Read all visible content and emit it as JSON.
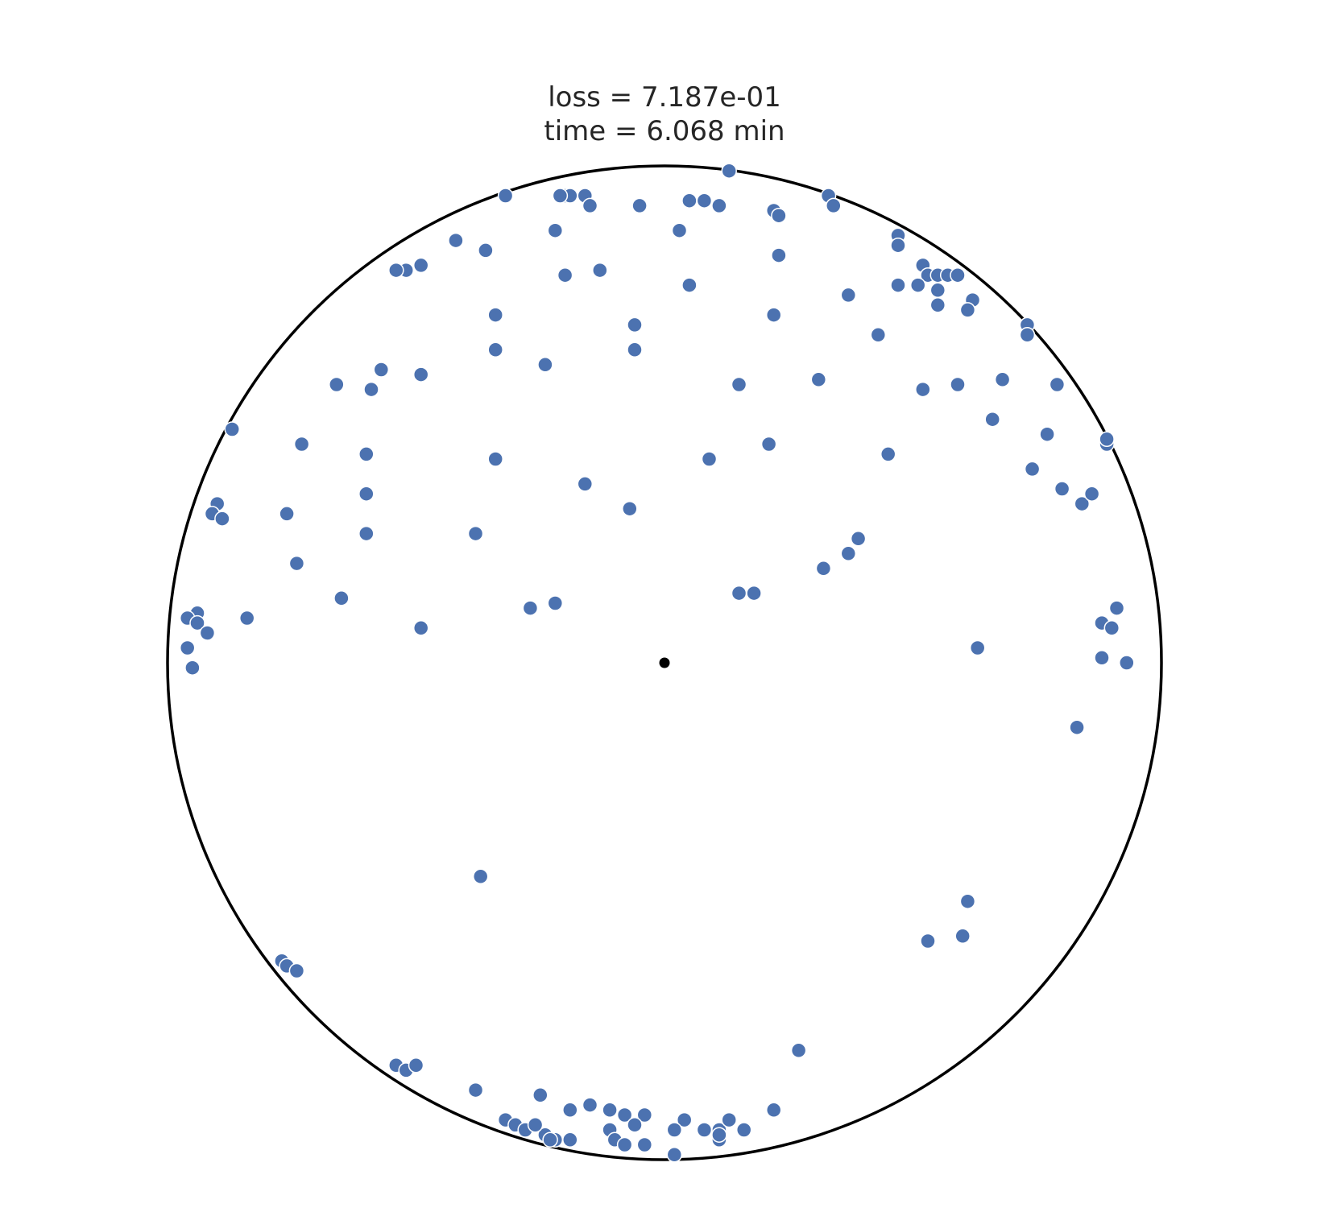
{
  "chart_data": {
    "type": "scatter",
    "title": [
      "loss = 7.187e-01",
      "time = 6.068 min"
    ],
    "xlabel": "",
    "ylabel": "",
    "xlim": [
      -1,
      1
    ],
    "ylim": [
      -1,
      1
    ],
    "axes_visible": false,
    "grid": false,
    "boundary": "unit-circle",
    "origin_marker": [
      0,
      0
    ],
    "point_color": "#4c72b0",
    "edge_color": "#ffffff",
    "boundary_color": "#000000",
    "points": [
      [
        -0.32,
        0.94
      ],
      [
        -0.2,
        0.94
      ],
      [
        -0.19,
        0.94
      ],
      [
        -0.21,
        0.94
      ],
      [
        -0.16,
        0.94
      ],
      [
        -0.15,
        0.92
      ],
      [
        -0.05,
        0.92
      ],
      [
        0.05,
        0.93
      ],
      [
        0.08,
        0.93
      ],
      [
        0.11,
        0.92
      ],
      [
        0.13,
        0.99
      ],
      [
        0.22,
        0.91
      ],
      [
        0.23,
        0.9
      ],
      [
        0.33,
        0.94
      ],
      [
        0.34,
        0.92
      ],
      [
        -0.22,
        0.87
      ],
      [
        0.03,
        0.87
      ],
      [
        -0.42,
        0.85
      ],
      [
        -0.36,
        0.83
      ],
      [
        -0.52,
        0.79
      ],
      [
        -0.54,
        0.79
      ],
      [
        -0.49,
        0.8
      ],
      [
        -0.2,
        0.78
      ],
      [
        -0.13,
        0.79
      ],
      [
        0.05,
        0.76
      ],
      [
        0.23,
        0.82
      ],
      [
        0.47,
        0.86
      ],
      [
        0.47,
        0.84
      ],
      [
        0.52,
        0.8
      ],
      [
        0.53,
        0.78
      ],
      [
        0.55,
        0.78
      ],
      [
        0.57,
        0.78
      ],
      [
        0.59,
        0.78
      ],
      [
        0.47,
        0.76
      ],
      [
        0.51,
        0.76
      ],
      [
        0.55,
        0.75
      ],
      [
        0.37,
        0.74
      ],
      [
        0.55,
        0.72
      ],
      [
        0.62,
        0.73
      ],
      [
        0.61,
        0.71
      ],
      [
        -0.34,
        0.7
      ],
      [
        -0.06,
        0.68
      ],
      [
        0.22,
        0.7
      ],
      [
        0.73,
        0.68
      ],
      [
        0.73,
        0.66
      ],
      [
        0.43,
        0.66
      ],
      [
        -0.34,
        0.63
      ],
      [
        -0.06,
        0.63
      ],
      [
        -0.24,
        0.6
      ],
      [
        -0.59,
        0.55
      ],
      [
        -0.57,
        0.59
      ],
      [
        -0.49,
        0.58
      ],
      [
        -0.66,
        0.56
      ],
      [
        0.15,
        0.56
      ],
      [
        0.31,
        0.57
      ],
      [
        0.52,
        0.55
      ],
      [
        0.59,
        0.56
      ],
      [
        0.68,
        0.57
      ],
      [
        0.79,
        0.56
      ],
      [
        0.66,
        0.49
      ],
      [
        0.77,
        0.46
      ],
      [
        -0.87,
        0.47
      ],
      [
        -0.73,
        0.44
      ],
      [
        -0.6,
        0.42
      ],
      [
        -0.34,
        0.41
      ],
      [
        0.09,
        0.41
      ],
      [
        0.21,
        0.44
      ],
      [
        0.45,
        0.42
      ],
      [
        0.89,
        0.44
      ],
      [
        0.89,
        0.45
      ],
      [
        0.74,
        0.39
      ],
      [
        0.8,
        0.35
      ],
      [
        0.84,
        0.32
      ],
      [
        0.86,
        0.34
      ],
      [
        -0.6,
        0.34
      ],
      [
        -0.16,
        0.36
      ],
      [
        -0.07,
        0.31
      ],
      [
        -0.9,
        0.32
      ],
      [
        -0.91,
        0.3
      ],
      [
        -0.89,
        0.29
      ],
      [
        -0.76,
        0.3
      ],
      [
        -0.6,
        0.26
      ],
      [
        -0.38,
        0.26
      ],
      [
        0.39,
        0.25
      ],
      [
        0.37,
        0.22
      ],
      [
        -0.74,
        0.2
      ],
      [
        0.32,
        0.19
      ],
      [
        -0.65,
        0.13
      ],
      [
        -0.27,
        0.11
      ],
      [
        -0.22,
        0.12
      ],
      [
        0.15,
        0.14
      ],
      [
        0.18,
        0.14
      ],
      [
        -0.94,
        0.1
      ],
      [
        -0.96,
        0.09
      ],
      [
        -0.94,
        0.08
      ],
      [
        -0.92,
        0.06
      ],
      [
        -0.84,
        0.09
      ],
      [
        -0.49,
        0.07
      ],
      [
        0.88,
        0.08
      ],
      [
        0.9,
        0.07
      ],
      [
        0.91,
        0.11
      ],
      [
        -0.96,
        0.03
      ],
      [
        -0.95,
        -0.01
      ],
      [
        0.63,
        0.03
      ],
      [
        0.88,
        0.01
      ],
      [
        0.93,
        0
      ],
      [
        0.83,
        -0.13
      ],
      [
        -0.37,
        -0.43
      ],
      [
        0.61,
        -0.48
      ],
      [
        0.53,
        -0.56
      ],
      [
        0.6,
        -0.55
      ],
      [
        -0.77,
        -0.6
      ],
      [
        -0.76,
        -0.61
      ],
      [
        -0.74,
        -0.62
      ],
      [
        0.27,
        -0.78
      ],
      [
        -0.54,
        -0.81
      ],
      [
        -0.52,
        -0.82
      ],
      [
        -0.5,
        -0.81
      ],
      [
        -0.38,
        -0.86
      ],
      [
        -0.25,
        -0.87
      ],
      [
        -0.19,
        -0.9
      ],
      [
        -0.15,
        -0.89
      ],
      [
        -0.11,
        -0.9
      ],
      [
        -0.08,
        -0.91
      ],
      [
        -0.04,
        -0.91
      ],
      [
        -0.11,
        -0.94
      ],
      [
        -0.06,
        -0.93
      ],
      [
        -0.1,
        -0.96
      ],
      [
        -0.04,
        -0.97
      ],
      [
        -0.08,
        -0.97
      ],
      [
        -0.32,
        -0.92
      ],
      [
        -0.3,
        -0.93
      ],
      [
        -0.28,
        -0.94
      ],
      [
        -0.24,
        -0.95
      ],
      [
        -0.22,
        -0.96
      ],
      [
        -0.26,
        -0.93
      ],
      [
        -0.19,
        -0.96
      ],
      [
        -0.23,
        -0.96
      ],
      [
        0.04,
        -0.92
      ],
      [
        0.02,
        -0.94
      ],
      [
        0.08,
        -0.94
      ],
      [
        0.11,
        -0.94
      ],
      [
        0.13,
        -0.92
      ],
      [
        0.11,
        -0.96
      ],
      [
        0.22,
        -0.9
      ],
      [
        0.16,
        -0.94
      ],
      [
        0.02,
        -0.99
      ],
      [
        0.11,
        -0.95
      ]
    ]
  }
}
